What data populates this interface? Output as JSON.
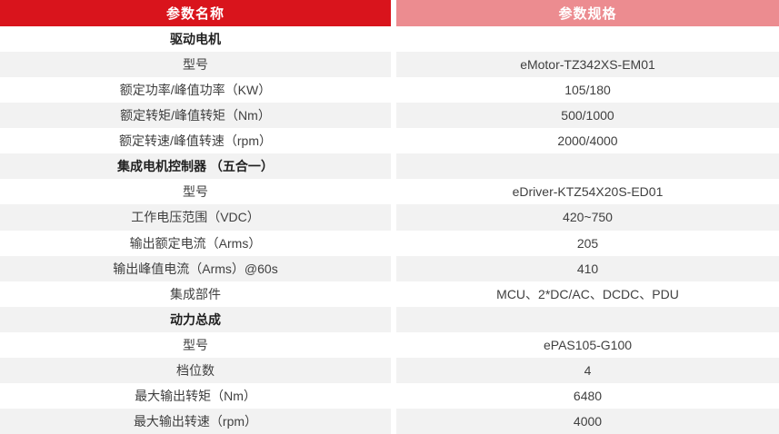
{
  "table": {
    "headers": [
      {
        "label": "参数名称"
      },
      {
        "label": "参数规格"
      }
    ],
    "rows": [
      {
        "name": "驱动电机",
        "value": "",
        "section": true
      },
      {
        "name": "型号",
        "value": "eMotor-TZ342XS-EM01",
        "section": false
      },
      {
        "name": "额定功率/峰值功率（KW）",
        "value": "105/180",
        "section": false
      },
      {
        "name": "额定转矩/峰值转矩（Nm）",
        "value": "500/1000",
        "section": false
      },
      {
        "name": "额定转速/峰值转速（rpm）",
        "value": "2000/4000",
        "section": false
      },
      {
        "name": "集成电机控制器 （五合一）",
        "value": "",
        "section": true
      },
      {
        "name": "型号",
        "value": "eDriver-KTZ54X20S-ED01",
        "section": false
      },
      {
        "name": "工作电压范围（VDC）",
        "value": "420~750",
        "section": false
      },
      {
        "name": "输出额定电流（Arms）",
        "value": "205",
        "section": false
      },
      {
        "name": "输出峰值电流（Arms）@60s",
        "value": "410",
        "section": false
      },
      {
        "name": "集成部件",
        "value": "MCU、2*DC/AC、DCDC、PDU",
        "section": false
      },
      {
        "name": "动力总成",
        "value": "",
        "section": true
      },
      {
        "name": "型号",
        "value": "ePAS105-G100",
        "section": false
      },
      {
        "name": "档位数",
        "value": "4",
        "section": false
      },
      {
        "name": "最大输出转矩（Nm）",
        "value": "6480",
        "section": false
      },
      {
        "name": "最大输出转速（rpm）",
        "value": "4000",
        "section": false
      }
    ]
  },
  "colors": {
    "header_left_bg": "#d9141c",
    "header_right_bg": "#ec8c90",
    "row_alt_bg": "#f2f2f2",
    "header_text": "#ffffff",
    "body_text": "#404040"
  }
}
